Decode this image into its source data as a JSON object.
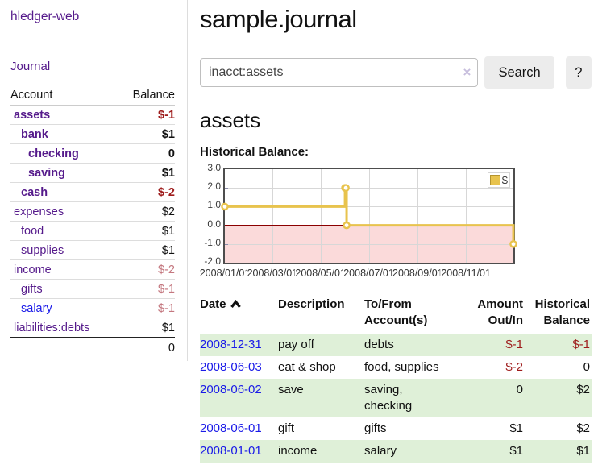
{
  "colors": {
    "link_purple": "#551a8b",
    "link_blue": "#1a1ae8",
    "negative_strong": "#9e1b1b",
    "negative_muted": "#c4777f",
    "row_highlight_green": "#dff0d8",
    "chart_line_gold": "#e8c34d",
    "chart_negative_region": "#fbdada",
    "chart_zero_line": "#8b0000"
  },
  "sidebar": {
    "app_title": "hledger-web",
    "nav_journal": "Journal",
    "accounts": {
      "header_account": "Account",
      "header_balance": "Balance",
      "rows": [
        {
          "name": "assets",
          "indent": 1,
          "bold": true,
          "negative": true,
          "balance": "$-1"
        },
        {
          "name": "bank",
          "indent": 2,
          "bold": true,
          "negative": false,
          "balance": "$1"
        },
        {
          "name": "checking",
          "indent": 3,
          "bold": true,
          "negative": false,
          "balance": "0"
        },
        {
          "name": "saving",
          "indent": 3,
          "bold": true,
          "negative": false,
          "balance": "$1"
        },
        {
          "name": "cash",
          "indent": 2,
          "bold": true,
          "negative": true,
          "balance": "$-2"
        },
        {
          "name": "expenses",
          "indent": 1,
          "bold": false,
          "negative": false,
          "balance": "$2"
        },
        {
          "name": "food",
          "indent": 2,
          "bold": false,
          "negative": false,
          "balance": "$1"
        },
        {
          "name": "supplies",
          "indent": 2,
          "bold": false,
          "negative": false,
          "balance": "$1"
        },
        {
          "name": "income",
          "indent": 1,
          "bold": false,
          "negative": true,
          "balance": "$-2"
        },
        {
          "name": "gifts",
          "indent": 2,
          "bold": false,
          "negative": true,
          "balance": "$-1"
        },
        {
          "name": "salary",
          "indent": 2,
          "bold": false,
          "negative": true,
          "balance": "$-1",
          "blue": true
        },
        {
          "name": "liabilities:debts",
          "indent": 1,
          "bold": false,
          "negative": false,
          "balance": "$1"
        }
      ],
      "total": "0"
    }
  },
  "main": {
    "title": "sample.journal",
    "search": {
      "value": "inacct:assets",
      "clear_icon": "×",
      "search_button": "Search",
      "help_button": "?"
    },
    "account_heading": "assets",
    "chart_title": "Historical Balance:"
  },
  "chart_data": {
    "type": "line",
    "title": "Historical Balance:",
    "series": [
      {
        "name": "$",
        "color": "#e8c34d",
        "style": "step-with-markers",
        "points": [
          [
            "2008-01-01",
            1
          ],
          [
            "2008-06-01",
            2
          ],
          [
            "2008-06-02",
            2
          ],
          [
            "2008-06-03",
            0
          ],
          [
            "2008-12-31",
            -1
          ]
        ]
      }
    ],
    "x_range": [
      "2008-01-01",
      "2008-12-31"
    ],
    "y_range": [
      -2,
      3
    ],
    "y_ticks": [
      3.0,
      2.0,
      1.0,
      0.0,
      -1.0,
      -2.0
    ],
    "y_tick_labels": [
      "3.0",
      "2.0",
      "1.0",
      "0.0",
      "-1.0",
      "-2.0"
    ],
    "x_ticks": [
      "2008-01-01",
      "2008-03-01",
      "2008-05-01",
      "2008-07-01",
      "2008-09-01",
      "2008-11-01"
    ],
    "x_tick_labels": [
      "2008/01/01",
      "2008/03/01",
      "2008/05/01",
      "2008/07/01",
      "2008/09/01",
      "2008/11/01"
    ],
    "grid": true,
    "legend": {
      "label": "$",
      "position": "top-right"
    },
    "negative_region_below": 0
  },
  "transactions": {
    "headers": {
      "date": "Date",
      "description": "Description",
      "accounts": "To/From Account(s)",
      "amount": "Amount Out/In",
      "balance": "Historical Balance"
    },
    "rows": [
      {
        "date": "2008-12-31",
        "description": "pay off",
        "accounts": "debts",
        "amount": "$-1",
        "amount_neg": true,
        "balance": "$-1",
        "balance_neg": true
      },
      {
        "date": "2008-06-03",
        "description": "eat & shop",
        "accounts": "food, supplies",
        "amount": "$-2",
        "amount_neg": true,
        "balance": "0",
        "balance_neg": false
      },
      {
        "date": "2008-06-02",
        "description": "save",
        "accounts": "saving, checking",
        "amount": "0",
        "amount_neg": false,
        "balance": "$2",
        "balance_neg": false
      },
      {
        "date": "2008-06-01",
        "description": "gift",
        "accounts": "gifts",
        "amount": "$1",
        "amount_neg": false,
        "balance": "$2",
        "balance_neg": false
      },
      {
        "date": "2008-01-01",
        "description": "income",
        "accounts": "salary",
        "amount": "$1",
        "amount_neg": false,
        "balance": "$1",
        "balance_neg": false
      }
    ]
  }
}
